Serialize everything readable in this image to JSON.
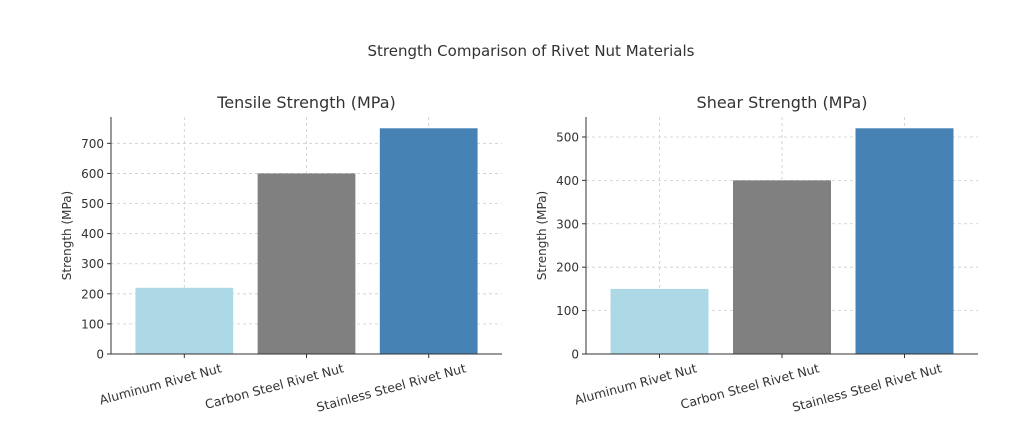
{
  "figure": {
    "suptitle": "Strength Comparison of Rivet Nut Materials"
  },
  "colors": {
    "aluminum": "#add8e6",
    "carbon_steel": "#808080",
    "stainless_steel": "#4682b4",
    "grid": "#cccccc",
    "axis": "#333333"
  },
  "chart_data": [
    {
      "type": "bar",
      "title": "Tensile Strength (MPa)",
      "xlabel": "",
      "ylabel": "Strength (MPa)",
      "categories": [
        "Aluminum Rivet Nut",
        "Carbon Steel Rivet Nut",
        "Stainless Steel Rivet Nut"
      ],
      "values": [
        220,
        600,
        750
      ],
      "bar_colors": [
        "#add8e6",
        "#808080",
        "#4682b4"
      ],
      "ylim": [
        0,
        787.5
      ],
      "yticks": [
        0,
        100,
        200,
        300,
        400,
        500,
        600,
        700
      ],
      "grid": true,
      "tick_label_rotation": "rotated"
    },
    {
      "type": "bar",
      "title": "Shear Strength (MPa)",
      "xlabel": "",
      "ylabel": "Strength (MPa)",
      "categories": [
        "Aluminum Rivet Nut",
        "Carbon Steel Rivet Nut",
        "Stainless Steel Rivet Nut"
      ],
      "values": [
        150,
        400,
        520
      ],
      "bar_colors": [
        "#add8e6",
        "#808080",
        "#4682b4"
      ],
      "ylim": [
        0,
        546
      ],
      "yticks": [
        0,
        100,
        200,
        300,
        400,
        500
      ],
      "grid": true,
      "tick_label_rotation": "rotated"
    }
  ]
}
